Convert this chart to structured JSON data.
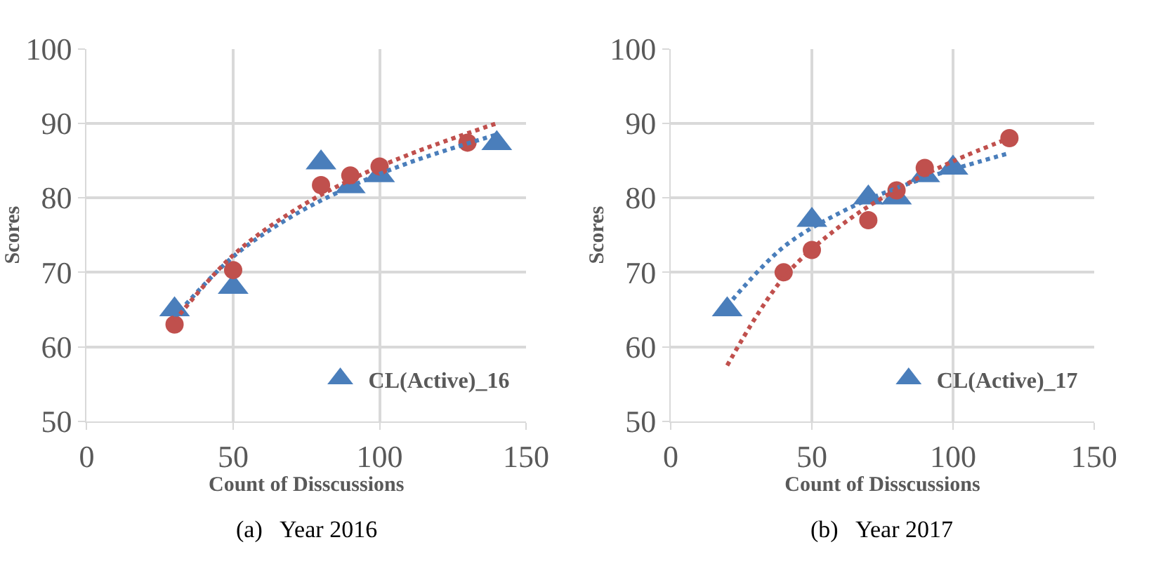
{
  "chart_data": [
    {
      "type": "scatter",
      "subtitle": "(a)   Year 2016",
      "xlabel": "Count of Disscussions",
      "ylabel": "Scores",
      "xlim": [
        0,
        150
      ],
      "xticks": [
        0,
        50,
        100,
        150
      ],
      "ylim": [
        50,
        100
      ],
      "yticks": [
        50,
        60,
        70,
        80,
        90,
        100
      ],
      "grid": true,
      "legend": "bottom right",
      "series": [
        {
          "name": "CL(Active)_16",
          "color": "#4a7ebb",
          "marker": "triangle",
          "x": [
            30,
            50,
            80,
            90,
            100,
            140
          ],
          "values": [
            65,
            68,
            84.7,
            81.5,
            83,
            87.3
          ]
        },
        {
          "color": "#c0504d",
          "marker": "circle",
          "x": [
            30,
            50,
            80,
            90,
            100,
            130
          ],
          "values": [
            63,
            70.3,
            81.7,
            83,
            84.2,
            87.4
          ]
        },
        {
          "type": "line",
          "color": "#4a7ebb",
          "line_style": "dotted",
          "x": [
            30,
            50,
            70,
            90,
            110,
            140
          ],
          "values": [
            64,
            72.1,
            77.5,
            81.5,
            84.7,
            88.5
          ]
        },
        {
          "type": "line",
          "color": "#c0504d",
          "line_style": "dotted",
          "x": [
            30,
            50,
            70,
            90,
            110,
            140
          ],
          "values": [
            63.5,
            72.3,
            78.1,
            82.4,
            85.8,
            90
          ]
        }
      ]
    },
    {
      "type": "scatter",
      "subtitle": "(b)   Year 2017",
      "xlabel": "Count of Disscussions",
      "ylabel": "Scores",
      "xlim": [
        0,
        150
      ],
      "xticks": [
        0,
        50,
        100,
        150
      ],
      "ylim": [
        50,
        100
      ],
      "yticks": [
        50,
        60,
        70,
        80,
        90,
        100
      ],
      "grid": true,
      "legend": "bottom right",
      "series": [
        {
          "name": "CL(Active)_17",
          "color": "#4a7ebb",
          "marker": "triangle",
          "x": [
            20,
            50,
            70,
            80,
            90,
            100
          ],
          "values": [
            65,
            77,
            80,
            80,
            83,
            84
          ]
        },
        {
          "color": "#c0504d",
          "marker": "circle",
          "x": [
            40,
            50,
            70,
            80,
            90,
            120
          ],
          "values": [
            70,
            73,
            77,
            81,
            84,
            88
          ]
        },
        {
          "type": "line",
          "color": "#4a7ebb",
          "line_style": "dotted",
          "x": [
            20,
            40,
            60,
            80,
            100,
            120
          ],
          "values": [
            65.5,
            73.4,
            78,
            81.3,
            83.8,
            86
          ]
        },
        {
          "type": "line",
          "color": "#c0504d",
          "line_style": "dotted",
          "x": [
            20,
            40,
            60,
            80,
            100,
            120
          ],
          "values": [
            57.5,
            69.3,
            76.2,
            81.1,
            84.9,
            88
          ]
        }
      ]
    }
  ]
}
